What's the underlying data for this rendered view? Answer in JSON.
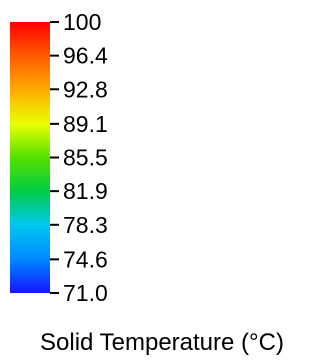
{
  "chart_data": {
    "type": "heatmap",
    "title": "Solid Temperature (°C)",
    "colorbar": {
      "orientation": "vertical",
      "min": 71.0,
      "max": 100,
      "tick_values": [
        100,
        96.4,
        92.8,
        89.1,
        85.5,
        81.9,
        78.3,
        74.6,
        71.0
      ],
      "tick_labels": [
        "100",
        "96.4",
        "92.8",
        "89.1",
        "85.5",
        "81.9",
        "78.3",
        "74.6",
        "71.0"
      ],
      "colormap": [
        {
          "value": 100,
          "color": "#ff0000"
        },
        {
          "value": 96.4,
          "color": "#ff5a00"
        },
        {
          "value": 92.8,
          "color": "#ffaa00"
        },
        {
          "value": 89.1,
          "color": "#eaff00"
        },
        {
          "value": 85.5,
          "color": "#55e000"
        },
        {
          "value": 81.9,
          "color": "#00cc44"
        },
        {
          "value": 78.3,
          "color": "#00c8ee"
        },
        {
          "value": 74.6,
          "color": "#0088ff"
        },
        {
          "value": 71.0,
          "color": "#1414ff"
        }
      ]
    }
  }
}
